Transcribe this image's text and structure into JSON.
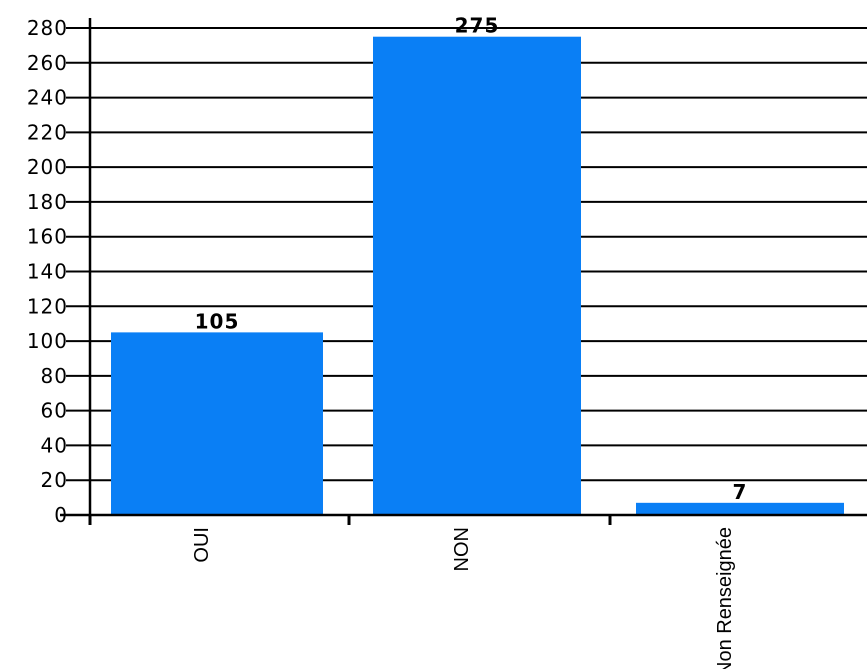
{
  "chart_data": {
    "type": "bar",
    "categories": [
      "OUI",
      "NON",
      "Non Renseignée"
    ],
    "values": [
      105,
      275,
      7
    ],
    "data_labels": [
      "105",
      "275",
      "7"
    ],
    "ylim": [
      0,
      280
    ],
    "y_ticks": [
      0,
      20,
      40,
      60,
      80,
      100,
      120,
      140,
      160,
      180,
      200,
      220,
      240,
      260,
      280
    ],
    "y_tick_labels": [
      "0",
      "20",
      "40",
      "60",
      "80",
      "100",
      "120",
      "140",
      "160",
      "180",
      "200",
      "220",
      "240",
      "260",
      "280"
    ],
    "grid": true,
    "legend": "none",
    "bar_color": "#0a7ff5",
    "grid_color": "#000000"
  }
}
